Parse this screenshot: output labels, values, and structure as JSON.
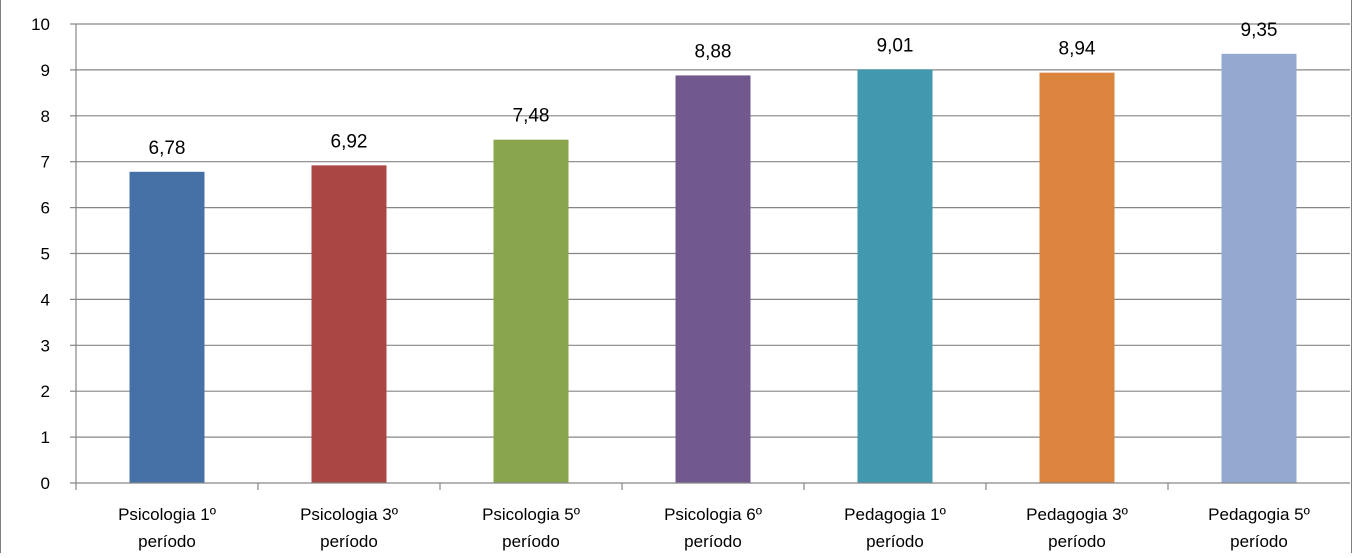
{
  "chart_data": {
    "type": "bar",
    "categories": [
      [
        "Psicologia 1º",
        "período"
      ],
      [
        "Psicologia 3º",
        "período"
      ],
      [
        "Psicologia 5º",
        "período"
      ],
      [
        "Psicologia 6º",
        "período"
      ],
      [
        "Pedagogia 1º",
        "período"
      ],
      [
        "Pedagogia 3º",
        "período"
      ],
      [
        "Pedagogia 5º",
        "período"
      ]
    ],
    "values": [
      6.78,
      6.92,
      7.48,
      8.88,
      9.01,
      8.94,
      9.35
    ],
    "data_labels": [
      "6,78",
      "6,92",
      "7,48",
      "8,88",
      "9,01",
      "8,94",
      "9,35"
    ],
    "colors": [
      "#4571a7",
      "#aa4644",
      "#89a54e",
      "#71598e",
      "#4198af",
      "#db843d",
      "#93a9cf"
    ],
    "ylim": [
      0,
      10
    ],
    "yticks": [
      0,
      1,
      2,
      3,
      4,
      5,
      6,
      7,
      8,
      9,
      10
    ],
    "grid": true,
    "legend": "none",
    "title": "",
    "xlabel": "",
    "ylabel": ""
  }
}
